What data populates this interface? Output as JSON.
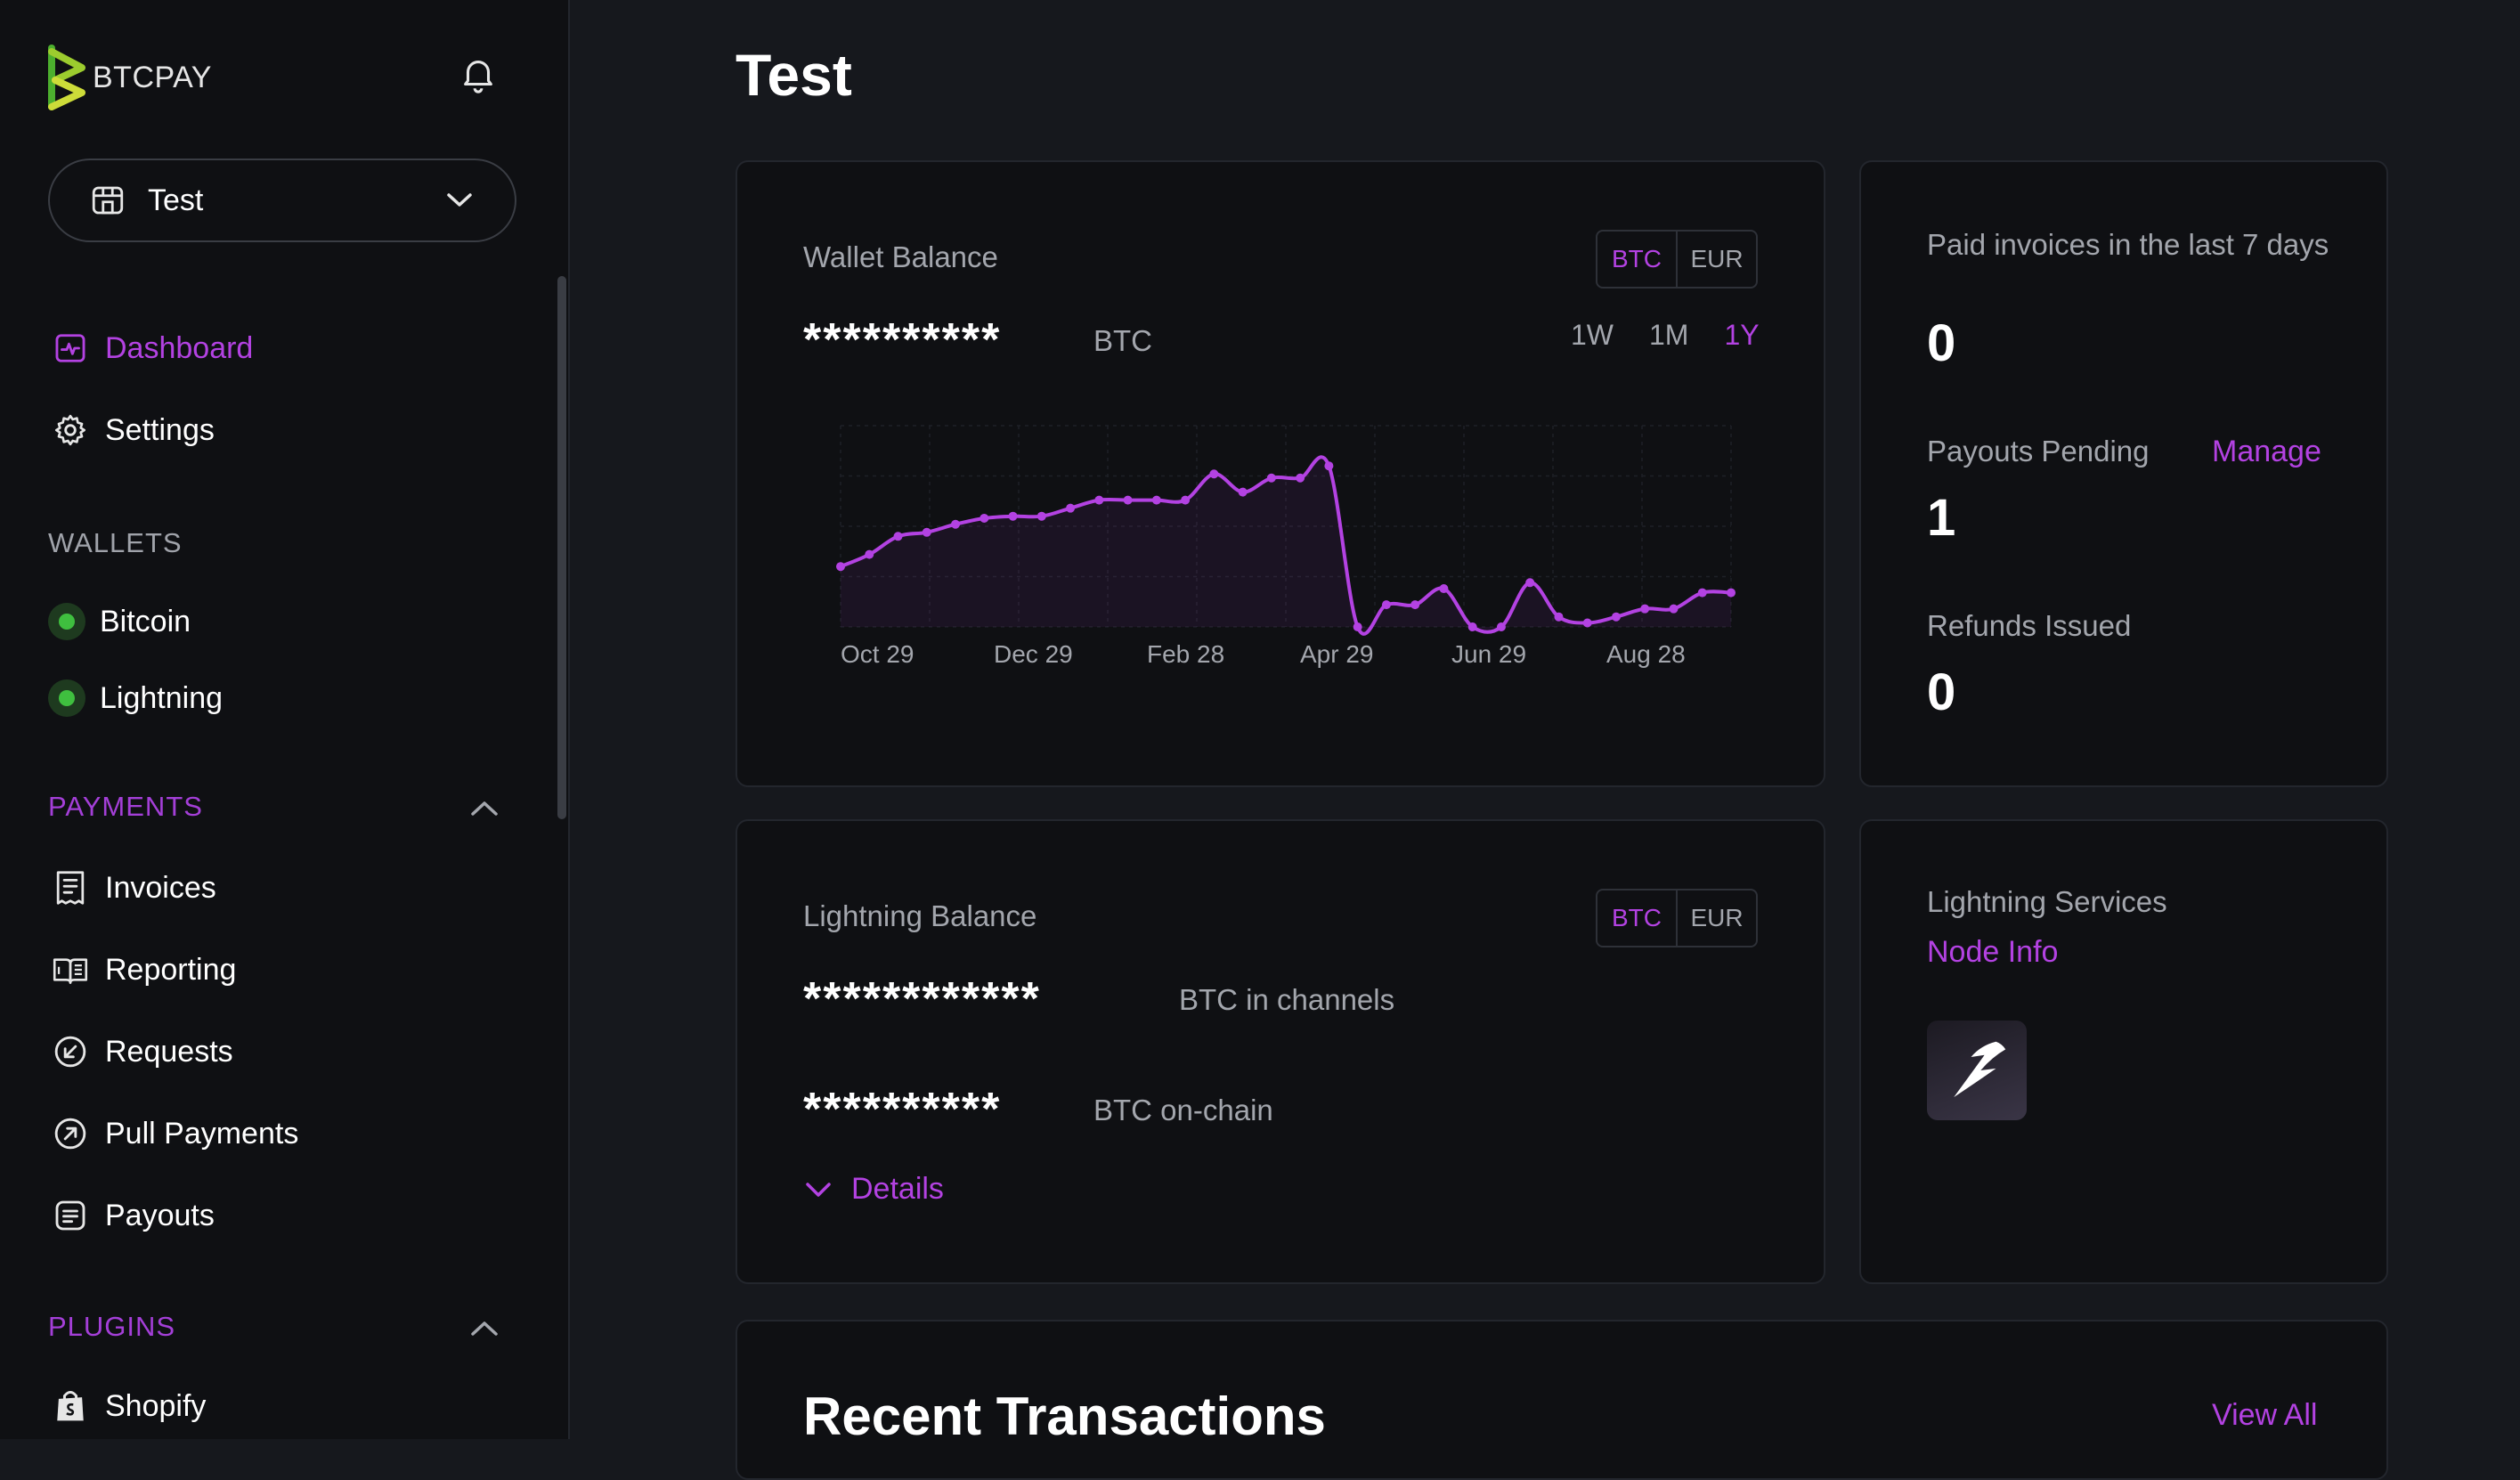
{
  "sidebar": {
    "brand": "BTCPAY",
    "store_name": "Test",
    "nav": {
      "dashboard": "Dashboard",
      "settings": "Settings"
    },
    "wallets_heading": "WALLETS",
    "wallets": [
      "Bitcoin",
      "Lightning"
    ],
    "payments_heading": "PAYMENTS",
    "payments": [
      "Invoices",
      "Reporting",
      "Requests",
      "Pull Payments",
      "Payouts"
    ],
    "plugins_heading": "PLUGINS",
    "plugins": [
      "Shopify"
    ]
  },
  "page": {
    "title": "Test"
  },
  "wallet_balance": {
    "label": "Wallet Balance",
    "currency_toggle": [
      "BTC",
      "EUR"
    ],
    "selected_currency": "BTC",
    "amount": "**********",
    "unit": "BTC",
    "ranges": [
      "1W",
      "1M",
      "1Y"
    ],
    "selected_range": "1Y"
  },
  "chart_data": {
    "type": "area",
    "xlabel": "",
    "ylabel": "",
    "x_tick_labels": [
      "Oct 29",
      "Dec 29",
      "Feb 28",
      "Apr 29",
      "Jun 29",
      "Aug 28"
    ],
    "series": [
      {
        "values": [
          0.3,
          0.36,
          0.45,
          0.47,
          0.51,
          0.54,
          0.55,
          0.55,
          0.59,
          0.63,
          0.63,
          0.63,
          0.63,
          0.76,
          0.67,
          0.74,
          0.74,
          0.8,
          0.0,
          0.11,
          0.11,
          0.19,
          0.0,
          0.0,
          0.22,
          0.05,
          0.02,
          0.05,
          0.09,
          0.09,
          0.17,
          0.17
        ]
      }
    ],
    "grid": true,
    "color": "#b342e2"
  },
  "stats": {
    "paid_invoices_label": "Paid invoices in the last 7 days",
    "paid_invoices_value": "0",
    "payouts_pending_label": "Payouts Pending",
    "payouts_manage": "Manage",
    "payouts_pending_value": "1",
    "refunds_label": "Refunds Issued",
    "refunds_value": "0"
  },
  "lightning_balance": {
    "label": "Lightning Balance",
    "currency_toggle": [
      "BTC",
      "EUR"
    ],
    "selected_currency": "BTC",
    "channels_amount": "************",
    "channels_unit": "BTC in channels",
    "onchain_amount": "**********",
    "onchain_unit": "BTC on-chain",
    "details": "Details"
  },
  "lightning_services": {
    "label": "Lightning Services",
    "node_info": "Node Info"
  },
  "recent_transactions": {
    "title": "Recent Transactions",
    "view_all": "View All"
  },
  "colors": {
    "accent": "#b342e2",
    "background": "#16181d",
    "card": "#0f1013",
    "online": "#3fbf3f"
  }
}
